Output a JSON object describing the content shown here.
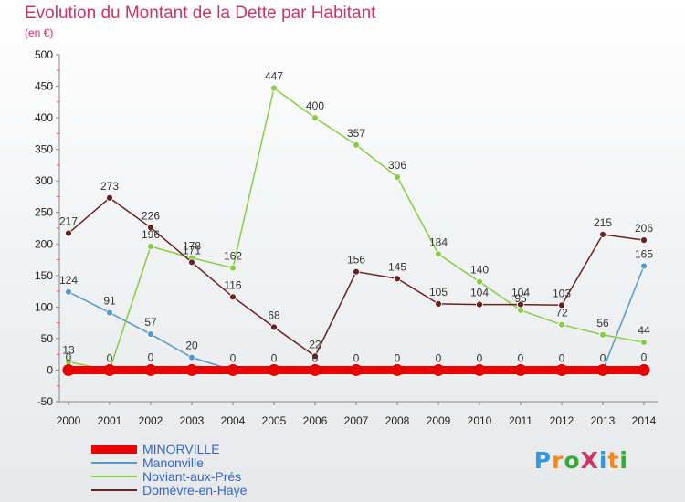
{
  "header": {
    "title": "Evolution du Montant de la Dette par Habitant",
    "subtitle": "(en €)"
  },
  "logo": {
    "text": "ProXiti",
    "colors": [
      "#3399dd",
      "#ee8822",
      "#33aa33",
      "#cc3366"
    ]
  },
  "chart_data": {
    "type": "line",
    "title": "Evolution du Montant de la Dette par Habitant",
    "ylabel": "(en €)",
    "xlabel": "",
    "x": [
      "2000",
      "2001",
      "2002",
      "2003",
      "2004",
      "2005",
      "2006",
      "2007",
      "2008",
      "2009",
      "2010",
      "2011",
      "2012",
      "2013",
      "2014"
    ],
    "yticks": [
      -50,
      0,
      50,
      100,
      150,
      200,
      250,
      300,
      350,
      400,
      450,
      500
    ],
    "ylim": [
      -50,
      500
    ],
    "grid": false,
    "legend_position": "bottom-left",
    "series": [
      {
        "name": "MINORVILLE",
        "color": "#ee0000",
        "values": [
          0,
          0,
          0,
          0,
          0,
          0,
          0,
          0,
          0,
          0,
          0,
          0,
          0,
          0,
          0
        ],
        "labels": []
      },
      {
        "name": "Manonville",
        "color": "#5599cc",
        "values": [
          124,
          91,
          57,
          20,
          0,
          0,
          0,
          0,
          0,
          0,
          0,
          0,
          0,
          0,
          165
        ],
        "labels": [
          "124",
          "91",
          "57",
          "20",
          "0",
          "0",
          "0",
          "0",
          "0",
          "0",
          "0",
          "0",
          "0",
          "0",
          "165"
        ]
      },
      {
        "name": "Noviant-aux-Prés",
        "color": "#88cc44",
        "values": [
          13,
          0,
          196,
          178,
          162,
          447,
          400,
          357,
          306,
          184,
          140,
          95,
          72,
          56,
          44
        ],
        "labels": [
          "13",
          "0",
          "196",
          "178",
          "162",
          "447",
          "400",
          "357",
          "306",
          "184",
          "140",
          "95",
          "72",
          "56",
          "44"
        ]
      },
      {
        "name": "Domèvre-en-Haye",
        "color": "#662222",
        "values": [
          217,
          273,
          226,
          171,
          116,
          68,
          22,
          156,
          145,
          105,
          104,
          104,
          103,
          215,
          206
        ],
        "labels": [
          "217",
          "273",
          "226",
          "171",
          "116",
          "68",
          "22",
          "156",
          "145",
          "105",
          "104",
          "104",
          "103",
          "215",
          "206"
        ]
      }
    ],
    "extra_labels": [
      {
        "x": "2000",
        "text": "0"
      },
      {
        "x": "2002",
        "text": "0"
      },
      {
        "x": "2014",
        "text": "0"
      }
    ]
  }
}
